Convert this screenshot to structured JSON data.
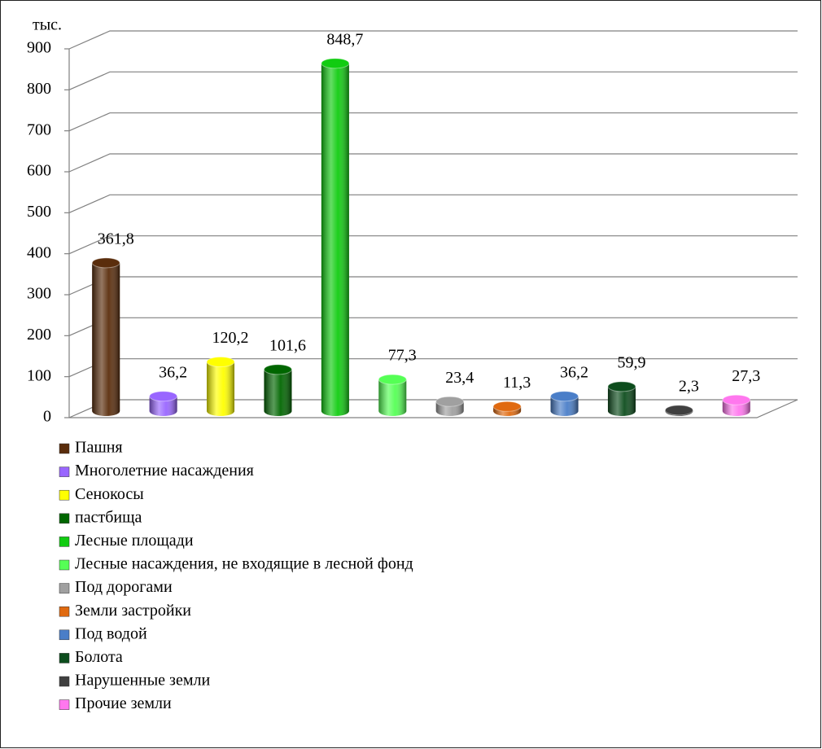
{
  "chart_data": {
    "type": "bar",
    "unit_label": "тыс.",
    "ylim": [
      0,
      900
    ],
    "yticks": [
      0,
      100,
      200,
      300,
      400,
      500,
      600,
      700,
      800,
      900
    ],
    "grid": true,
    "series": [
      {
        "name": "Пашня",
        "color": "#5a2d0c",
        "values": [
          361.8
        ],
        "value_labels": [
          "361,8"
        ]
      },
      {
        "name": "Многолетние насаждения",
        "color": "#9966ff",
        "values": [
          36.2
        ],
        "value_labels": [
          "36,2"
        ]
      },
      {
        "name": "Сенокосы",
        "color": "#ffff00",
        "values": [
          120.2
        ],
        "value_labels": [
          "120,2"
        ]
      },
      {
        "name": "пастбища",
        "color": "#006600",
        "values": [
          101.6
        ],
        "value_labels": [
          "101,6"
        ]
      },
      {
        "name": "Лесные площади",
        "color": "#11cc11",
        "values": [
          848.7
        ],
        "value_labels": [
          "848,7"
        ]
      },
      {
        "name": "Лесные насаждения, не входящие в лесной фонд",
        "color": "#55ff55",
        "values": [
          77.3
        ],
        "value_labels": [
          "77,3"
        ]
      },
      {
        "name": "Под дорогами",
        "color": "#a0a0a0",
        "values": [
          23.4
        ],
        "value_labels": [
          "23,4"
        ]
      },
      {
        "name": "Земли застройки",
        "color": "#e06a10",
        "values": [
          11.3
        ],
        "value_labels": [
          "11,3"
        ]
      },
      {
        "name": "Под водой",
        "color": "#4a7ec8",
        "values": [
          36.2
        ],
        "value_labels": [
          "36,2"
        ]
      },
      {
        "name": "Болота",
        "color": "#0d4d1d",
        "values": [
          59.9
        ],
        "value_labels": [
          "59,9"
        ]
      },
      {
        "name": "Нарушенные земли",
        "color": "#404040",
        "values": [
          2.3
        ],
        "value_labels": [
          "2,3"
        ]
      },
      {
        "name": "Прочие земли",
        "color": "#ff77ee",
        "values": [
          27.3
        ],
        "value_labels": [
          "27,3"
        ]
      }
    ]
  }
}
